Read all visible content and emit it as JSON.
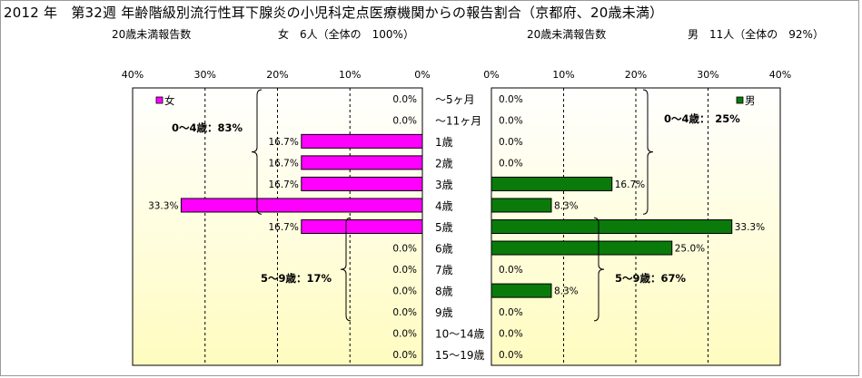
{
  "title": "2012 年　第32週 年齢階級別流行性耳下腺炎の小児科定点医療機関からの報告割合（京都府、20歳未満）",
  "female_header": {
    "label": "20歳未満報告数",
    "count_text": "女　6人（全体の　100%）"
  },
  "male_header": {
    "label": "20歳未満報告数",
    "count_text": "男　11人（全体の　92%）"
  },
  "colors": {
    "female": "#ff00ff",
    "male": "#0a7a0a",
    "background_top": "#ffffff",
    "background_bottom": "#fffcc0"
  },
  "chart_data": [
    {
      "type": "bar",
      "orientation": "horizontal",
      "direction": "right-to-left",
      "legend": "女",
      "legend_position": "top-left",
      "categories": [
        "～5ヶ月",
        "～11ヶ月",
        "1歳",
        "2歳",
        "3歳",
        "4歳",
        "5歳",
        "6歳",
        "7歳",
        "8歳",
        "9歳",
        "10～14歳",
        "15～19歳"
      ],
      "values": [
        0.0,
        0.0,
        16.7,
        16.7,
        16.7,
        33.3,
        16.7,
        0.0,
        0.0,
        0.0,
        0.0,
        0.0,
        0.0
      ],
      "value_labels": [
        "0.0%",
        "0.0%",
        "16.7%",
        "16.7%",
        "16.7%",
        "33.3%",
        "16.7%",
        "0.0%",
        "0.0%",
        "0.0%",
        "0.0%",
        "0.0%",
        "0.0%"
      ],
      "xlim": [
        0,
        40
      ],
      "xticks": [
        "40%",
        "30%",
        "20%",
        "10%",
        "0%"
      ],
      "grid": true,
      "annotations": [
        {
          "text": "0～4歳：83%",
          "rows": [
            0,
            5
          ]
        },
        {
          "text": "5～9歳：17%",
          "rows": [
            6,
            10
          ]
        }
      ]
    },
    {
      "type": "bar",
      "orientation": "horizontal",
      "direction": "left-to-right",
      "legend": "男",
      "legend_position": "top-right",
      "categories": [
        "～5ヶ月",
        "～11ヶ月",
        "1歳",
        "2歳",
        "3歳",
        "4歳",
        "5歳",
        "6歳",
        "7歳",
        "8歳",
        "9歳",
        "10～14歳",
        "15～19歳"
      ],
      "values": [
        0.0,
        0.0,
        0.0,
        0.0,
        16.7,
        8.3,
        33.3,
        25.0,
        0.0,
        8.3,
        0.0,
        0.0,
        0.0
      ],
      "value_labels": [
        "0.0%",
        "0.0%",
        "0.0%",
        "0.0%",
        "16.7%",
        "8.3%",
        "33.3%",
        "25.0%",
        "0.0%",
        "8.3%",
        "0.0%",
        "0.0%",
        "0.0%"
      ],
      "xlim": [
        0,
        40
      ],
      "xticks": [
        "0%",
        "10%",
        "20%",
        "30%",
        "40%"
      ],
      "grid": true,
      "annotations": [
        {
          "text": "0～4歳：　25%",
          "rows": [
            0,
            5
          ]
        },
        {
          "text": "5～9歳：67%",
          "rows": [
            6,
            10
          ]
        }
      ]
    }
  ]
}
